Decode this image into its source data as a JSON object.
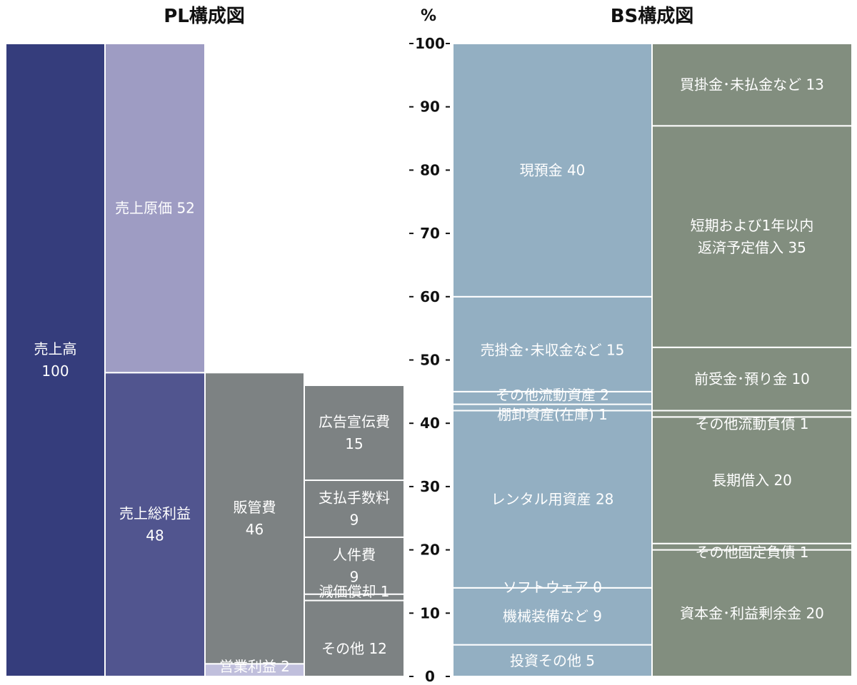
{
  "chart_data": {
    "type": "mekko",
    "unit": "%",
    "ylim": [
      0,
      100
    ],
    "ticks": [
      0,
      10,
      20,
      30,
      40,
      50,
      60,
      70,
      80,
      90,
      100
    ],
    "tick_labels": [
      "0",
      "10",
      "20",
      "30",
      "40",
      "50",
      "60",
      "70",
      "80",
      "90",
      "100"
    ],
    "panels": [
      {
        "title": "PL構成図",
        "columns": [
          {
            "segments": [
              {
                "lines": [
                  "売上高",
                  "100"
                ],
                "value": 100,
                "color": "#353d7c"
              }
            ]
          },
          {
            "segments": [
              {
                "lines": [
                  "売上総利益",
                  "48"
                ],
                "value": 48,
                "color": "#51558f"
              },
              {
                "lines": [
                  "売上原価 52"
                ],
                "value": 52,
                "color": "#9e9cc3"
              }
            ]
          },
          {
            "segments": [
              {
                "lines": [
                  "営業利益 2"
                ],
                "value": 2,
                "color": "#c0bfdc"
              },
              {
                "lines": [
                  "販管費",
                  "46"
                ],
                "value": 46,
                "color": "#7d8283"
              }
            ]
          },
          {
            "segments": [
              {
                "lines": [
                  "その他 12"
                ],
                "value": 12,
                "color": "#7d8283"
              },
              {
                "lines": [
                  "減価償却 1"
                ],
                "value": 1,
                "color": "#7d8283"
              },
              {
                "lines": [
                  "人件費",
                  "9"
                ],
                "value": 9,
                "color": "#7d8283"
              },
              {
                "lines": [
                  "支払手数料",
                  "9"
                ],
                "value": 9,
                "color": "#7d8283"
              },
              {
                "lines": [
                  "広告宣伝費",
                  "15"
                ],
                "value": 15,
                "color": "#7d8283"
              }
            ]
          }
        ]
      },
      {
        "title": "BS構成図",
        "columns": [
          {
            "segments": [
              {
                "lines": [
                  "投資その他 5"
                ],
                "value": 5,
                "color": "#93afc2"
              },
              {
                "lines": [
                  "機械装備など 9"
                ],
                "value": 9,
                "color": "#93afc2"
              },
              {
                "lines": [
                  "ソフトウェア 0"
                ],
                "value": 0,
                "color": "#93afc2"
              },
              {
                "lines": [
                  "レンタル用資産 28"
                ],
                "value": 28,
                "color": "#93afc2"
              },
              {
                "lines": [
                  "棚卸資産(在庫) 1"
                ],
                "value": 1,
                "color": "#93afc2"
              },
              {
                "lines": [
                  "その他流動資産 2"
                ],
                "value": 2,
                "color": "#93afc2"
              },
              {
                "lines": [
                  "売掛金･未収金など 15"
                ],
                "value": 15,
                "color": "#93afc2"
              },
              {
                "lines": [
                  "現預金 40"
                ],
                "value": 40,
                "color": "#93afc2"
              }
            ]
          },
          {
            "segments": [
              {
                "lines": [
                  "資本金･利益剰余金 20"
                ],
                "value": 20,
                "color": "#828e7f"
              },
              {
                "lines": [
                  "その他固定負債 1"
                ],
                "value": 1,
                "color": "#828e7f"
              },
              {
                "lines": [
                  "長期借入 20"
                ],
                "value": 20,
                "color": "#828e7f"
              },
              {
                "lines": [
                  "その他流動負債 1"
                ],
                "value": 1,
                "color": "#828e7f"
              },
              {
                "lines": [
                  "前受金･預り金 10"
                ],
                "value": 10,
                "color": "#828e7f"
              },
              {
                "lines": [
                  "短期および1年以内",
                  "返済予定借入 35"
                ],
                "value": 35,
                "color": "#828e7f"
              },
              {
                "lines": [
                  "買掛金･未払金など 13"
                ],
                "value": 13,
                "color": "#828e7f"
              }
            ]
          }
        ]
      }
    ]
  }
}
